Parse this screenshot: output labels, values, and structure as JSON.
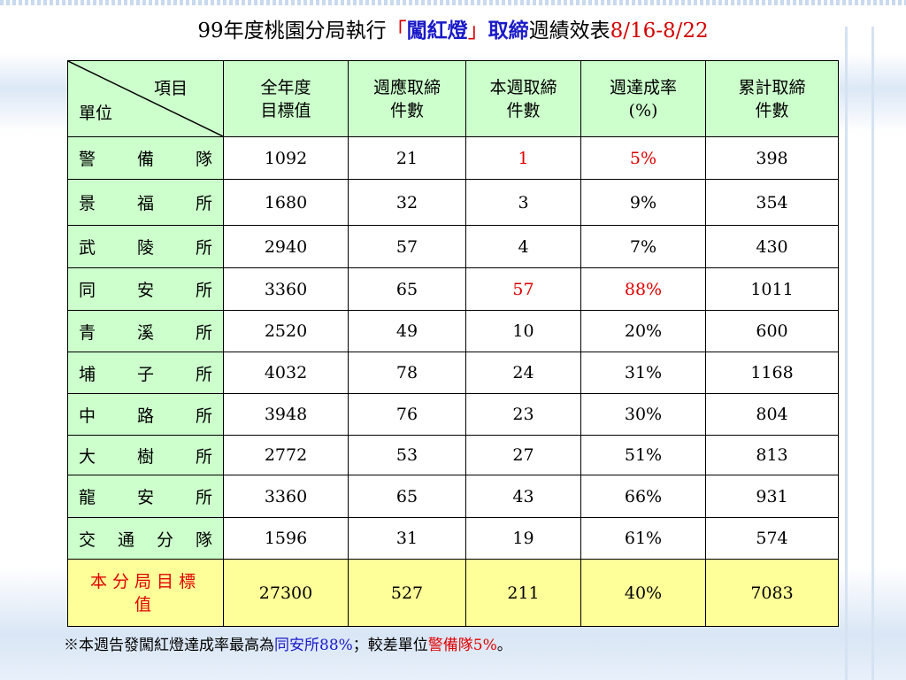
{
  "title": {
    "prefix": "99年度桃園分局執行",
    "open_bracket": "「",
    "highlight": "闖紅燈",
    "close_bracket": "」",
    "action": "取締",
    "suffix": "週績效表",
    "date": "8/16-8/22"
  },
  "colors": {
    "header_bg": "#ccffcc",
    "total_bg": "#ffff99",
    "highlight_red": "#e00000",
    "highlight_blue": "#1a1ac8"
  },
  "table": {
    "corner": {
      "top": "項目",
      "bottom": "單位"
    },
    "headers": [
      {
        "line1": "全年度",
        "line2": "目標值"
      },
      {
        "line1": "週應取締",
        "line2": "件數"
      },
      {
        "line1": "本週取締",
        "line2": "件數"
      },
      {
        "line1": "週達成率",
        "line2": "(%)"
      },
      {
        "line1": "累計取締",
        "line2": "件數"
      }
    ],
    "rows": [
      {
        "unit": "警備隊",
        "target": "1092",
        "weekly_required": "21",
        "weekly_actual": "1",
        "rate": "5%",
        "cumulative": "398"
      },
      {
        "unit": "景福所",
        "target": "1680",
        "weekly_required": "32",
        "weekly_actual": "3",
        "rate": "9%",
        "cumulative": "354"
      },
      {
        "unit": "武陵所",
        "target": "2940",
        "weekly_required": "57",
        "weekly_actual": "4",
        "rate": "7%",
        "cumulative": "430"
      },
      {
        "unit": "同安所",
        "target": "3360",
        "weekly_required": "65",
        "weekly_actual": "57",
        "rate": "88%",
        "cumulative": "1011"
      },
      {
        "unit": "青溪所",
        "target": "2520",
        "weekly_required": "49",
        "weekly_actual": "10",
        "rate": "20%",
        "cumulative": "600"
      },
      {
        "unit": "埔子所",
        "target": "4032",
        "weekly_required": "78",
        "weekly_actual": "24",
        "rate": "31%",
        "cumulative": "1168"
      },
      {
        "unit": "中路所",
        "target": "3948",
        "weekly_required": "76",
        "weekly_actual": "23",
        "rate": "30%",
        "cumulative": "804"
      },
      {
        "unit": "大樹所",
        "target": "2772",
        "weekly_required": "53",
        "weekly_actual": "27",
        "rate": "51%",
        "cumulative": "813"
      },
      {
        "unit": "龍安所",
        "target": "3360",
        "weekly_required": "65",
        "weekly_actual": "43",
        "rate": "66%",
        "cumulative": "931"
      },
      {
        "unit": "交通分隊",
        "target": "1596",
        "weekly_required": "31",
        "weekly_actual": "19",
        "rate": "61%",
        "cumulative": "574"
      }
    ],
    "total": {
      "unit_line1": "本分局目標",
      "unit_line2": "值",
      "target": "27300",
      "weekly_required": "527",
      "weekly_actual": "211",
      "rate": "40%",
      "cumulative": "7083"
    }
  },
  "footer": {
    "prefix": "※本週告發闖紅燈達成率最高為",
    "best": "同安所88%",
    "middle": "；較差單位",
    "worst": "警備隊5%",
    "end": "。"
  }
}
